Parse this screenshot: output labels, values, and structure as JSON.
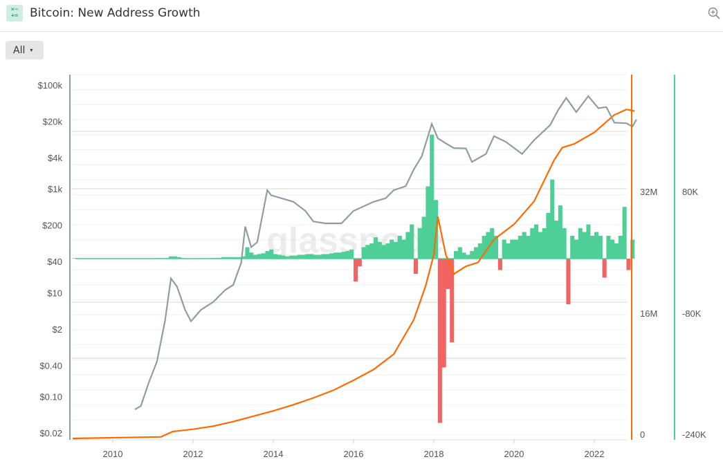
{
  "header": {
    "title": "Bitcoin: New Address Growth",
    "icon": "calculator-icon",
    "zoom_icon": "zoom-in-icon"
  },
  "controls": {
    "range_label": "All",
    "range_caret": "▾"
  },
  "watermark": "glassnode",
  "colors": {
    "price": "#8c9ea2",
    "addresses": "#ff6a00",
    "growth_positive": "#4fcf98",
    "growth_negative": "#f26464"
  },
  "chart_data": {
    "type": "line+bar",
    "title": "Bitcoin: New Address Growth",
    "x_ticks": [
      "2010",
      "2012",
      "2014",
      "2016",
      "2018",
      "2020",
      "2022"
    ],
    "xlim": [
      2008.97,
      2022.95
    ],
    "grid": true,
    "axes": {
      "left": {
        "scale": "log",
        "ticks": [
          "$100k",
          "$20k",
          "$4k",
          "$1k",
          "$200",
          "$40",
          "$10",
          "$2",
          "$0.40",
          "$0.10",
          "$0.02"
        ],
        "tick_values": [
          100000,
          20000,
          4000,
          1000,
          200,
          40,
          10,
          2,
          0.4,
          0.1,
          0.02
        ]
      },
      "right1": {
        "scale": "linear",
        "ticks": [
          "32M",
          "16M",
          "0"
        ],
        "tick_values": [
          32000000,
          16000000,
          0
        ]
      },
      "right2": {
        "scale": "linear",
        "ticks": [
          "80K",
          "-80K",
          "-240K"
        ],
        "tick_values": [
          80000,
          -80000,
          -240000
        ]
      }
    },
    "series": [
      {
        "type": "line",
        "axis": "left",
        "color": "#8c9ea2",
        "x": [
          2010.55,
          2010.7,
          2010.9,
          2011.1,
          2011.3,
          2011.45,
          2011.6,
          2011.8,
          2011.95,
          2012.2,
          2012.5,
          2012.8,
          2013.0,
          2013.2,
          2013.3,
          2013.45,
          2013.6,
          2013.85,
          2013.95,
          2014.2,
          2014.5,
          2014.8,
          2015.0,
          2015.3,
          2015.7,
          2016.0,
          2016.5,
          2016.8,
          2017.0,
          2017.3,
          2017.5,
          2017.7,
          2017.95,
          2018.1,
          2018.3,
          2018.5,
          2018.8,
          2018.95,
          2019.3,
          2019.5,
          2019.8,
          2020.2,
          2020.5,
          2020.9,
          2021.1,
          2021.3,
          2021.55,
          2021.85,
          2022.1,
          2022.3,
          2022.5,
          2022.8,
          2022.95,
          2023.05
        ],
        "values": [
          0.06,
          0.07,
          0.2,
          0.5,
          3,
          20,
          14,
          5,
          3,
          5,
          7,
          12,
          15,
          40,
          200,
          80,
          100,
          1000,
          800,
          700,
          600,
          400,
          250,
          230,
          230,
          400,
          600,
          700,
          1000,
          1200,
          2500,
          4500,
          19000,
          10000,
          8000,
          6500,
          6400,
          3500,
          5000,
          11000,
          8500,
          5000,
          9200,
          18000,
          35000,
          60000,
          32000,
          65000,
          38000,
          40000,
          20000,
          19500,
          16800,
          23000
        ]
      },
      {
        "type": "line",
        "axis": "right1",
        "color": "#ff6a00",
        "x": [
          2009.0,
          2011.2,
          2011.5,
          2012.0,
          2012.5,
          2013.0,
          2013.5,
          2014.0,
          2014.5,
          2015.0,
          2015.5,
          2016.0,
          2016.5,
          2017.0,
          2017.5,
          2017.8,
          2018.0,
          2018.1,
          2018.3,
          2018.5,
          2018.8,
          2019.1,
          2019.5,
          2020.0,
          2020.5,
          2021.0,
          2021.2,
          2021.5,
          2022.0,
          2022.5,
          2022.8,
          2023.0
        ],
        "values": [
          0,
          200000,
          900000,
          1200000,
          1600000,
          2200000,
          2900000,
          3600000,
          4400000,
          5300000,
          6300000,
          7600000,
          9000000,
          11000000,
          15500000,
          20000000,
          24000000,
          29000000,
          24000000,
          21500000,
          22500000,
          23000000,
          26000000,
          28000000,
          31000000,
          36400000,
          38000000,
          38500000,
          40000000,
          42300000,
          43000000,
          42800000
        ]
      },
      {
        "type": "bar",
        "axis": "right2",
        "x_start": 2009.0,
        "x_step": 0.1,
        "values": [
          0,
          0,
          0,
          0,
          0,
          0,
          0,
          0,
          0,
          0,
          0,
          0,
          0,
          0,
          0,
          0,
          0,
          0,
          0,
          0,
          0,
          0,
          0,
          1000,
          3000,
          3000,
          2000,
          1000,
          0,
          0,
          0,
          0,
          0,
          0,
          1000,
          1000,
          1000,
          2000,
          2000,
          2000,
          2000,
          2000,
          3000,
          15000,
          8000,
          5000,
          6000,
          7000,
          10000,
          12000,
          6000,
          5000,
          4000,
          3000,
          4000,
          4000,
          5000,
          5000,
          6000,
          6000,
          5000,
          5000,
          6000,
          6000,
          7000,
          8000,
          8000,
          9000,
          10000,
          12000,
          -30000,
          -10000,
          15000,
          18000,
          20000,
          28000,
          22000,
          18000,
          20000,
          25000,
          22000,
          30000,
          25000,
          35000,
          45000,
          -20000,
          40000,
          55000,
          95000,
          163000,
          77000,
          -216000,
          -143000,
          -40000,
          -110000,
          10000,
          15000,
          8000,
          5000,
          10000,
          15000,
          20000,
          30000,
          35000,
          40000,
          30000,
          -15000,
          25000,
          20000,
          25000,
          25000,
          30000,
          35000,
          30000,
          40000,
          45000,
          35000,
          40000,
          60000,
          104000,
          50000,
          70000,
          40000,
          -60000,
          30000,
          25000,
          40000,
          35000,
          45000,
          30000,
          35000,
          30000,
          -25000,
          30000,
          25000,
          20000,
          30000,
          68000,
          -15000,
          25000
        ]
      }
    ]
  }
}
